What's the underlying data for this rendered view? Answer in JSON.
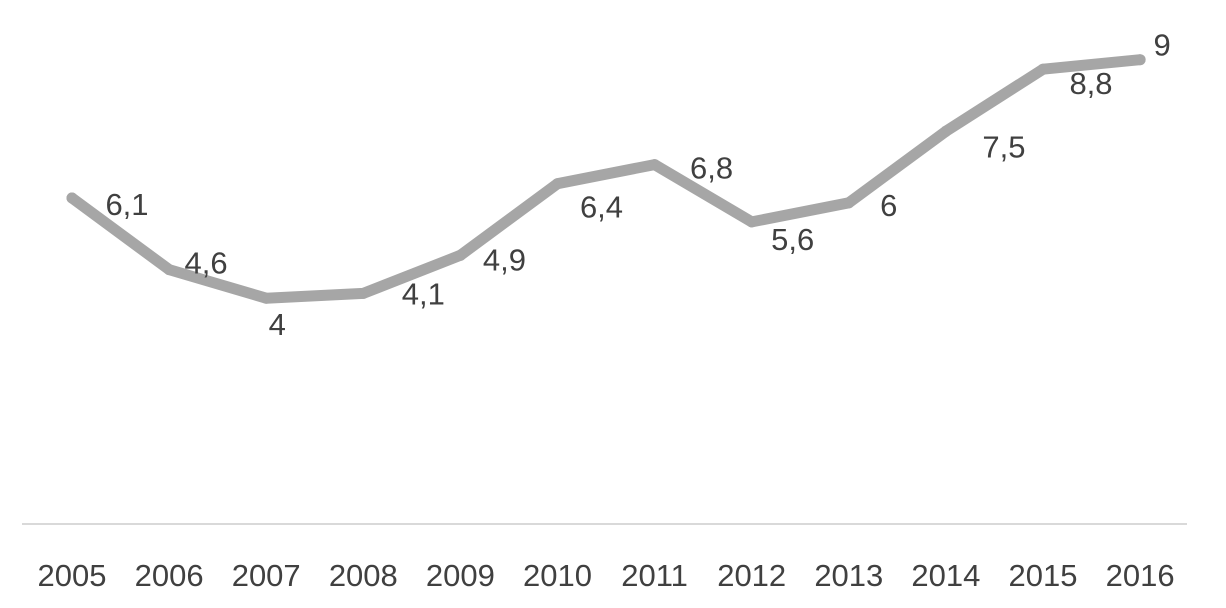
{
  "chart_data": {
    "type": "line",
    "title": "",
    "xlabel": "",
    "ylabel": "",
    "categories": [
      "2005",
      "2006",
      "2007",
      "2008",
      "2009",
      "2010",
      "2011",
      "2012",
      "2013",
      "2014",
      "2015",
      "2016"
    ],
    "series": [
      {
        "values": [
          6.1,
          4.6,
          4,
          4.1,
          4.9,
          6.4,
          6.8,
          5.6,
          6,
          7.5,
          8.8,
          9
        ],
        "data_labels": [
          "6,1",
          "4,6",
          "4",
          "4,1",
          "4,9",
          "6,4",
          "6,8",
          "5,6",
          "6",
          "7,5",
          "8,8",
          "9"
        ],
        "color": "#a6a6a6"
      }
    ],
    "ylim": [
      0,
      10
    ],
    "grid": false,
    "legend": "none",
    "axis_line_color": "#d9d9d9",
    "label_color": "#404040"
  }
}
